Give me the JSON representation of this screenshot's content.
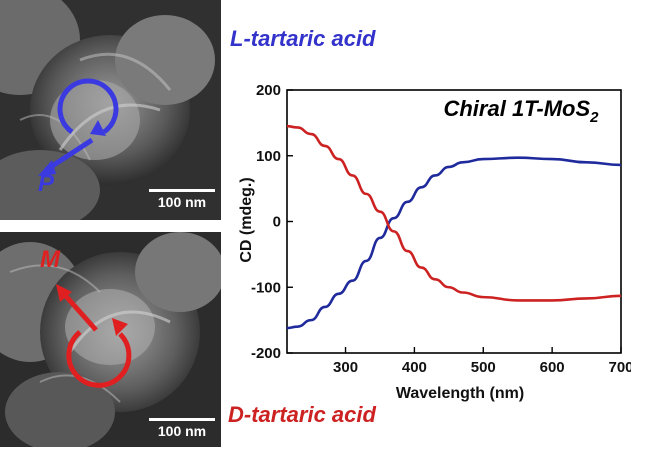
{
  "images": {
    "top": {
      "label": "P",
      "scale": "100 nm",
      "caption": "L-tartaric acid",
      "color": "#3333cc"
    },
    "bottom": {
      "label": "M",
      "scale": "100 nm",
      "caption": "D-tartaric acid",
      "color": "#cc2222"
    }
  },
  "chart_data": {
    "type": "line",
    "title": "Chiral 1T-MoS",
    "title_sub": "2",
    "xlabel": "Wavelength (nm)",
    "ylabel": "CD (mdeg.)",
    "xlim": [
      215,
      700
    ],
    "ylim": [
      -200,
      200
    ],
    "xticks": [
      300,
      400,
      500,
      600,
      700
    ],
    "yticks": [
      -200,
      -100,
      0,
      100,
      200
    ],
    "grid": false,
    "series": [
      {
        "color": "#1f2a9c",
        "x": [
          215,
          230,
          250,
          270,
          290,
          310,
          330,
          350,
          370,
          390,
          410,
          430,
          450,
          470,
          500,
          550,
          600,
          650,
          700
        ],
        "y": [
          -162,
          -160,
          -150,
          -130,
          -110,
          -90,
          -60,
          -25,
          5,
          30,
          52,
          70,
          83,
          90,
          95,
          97,
          95,
          90,
          86
        ]
      },
      {
        "color": "#cc2222",
        "x": [
          215,
          230,
          250,
          270,
          290,
          310,
          330,
          350,
          370,
          390,
          410,
          430,
          450,
          470,
          500,
          550,
          600,
          650,
          700
        ],
        "y": [
          145,
          143,
          133,
          115,
          95,
          70,
          42,
          15,
          -15,
          -45,
          -70,
          -88,
          -100,
          -108,
          -115,
          -120,
          -120,
          -117,
          -113
        ]
      }
    ]
  }
}
